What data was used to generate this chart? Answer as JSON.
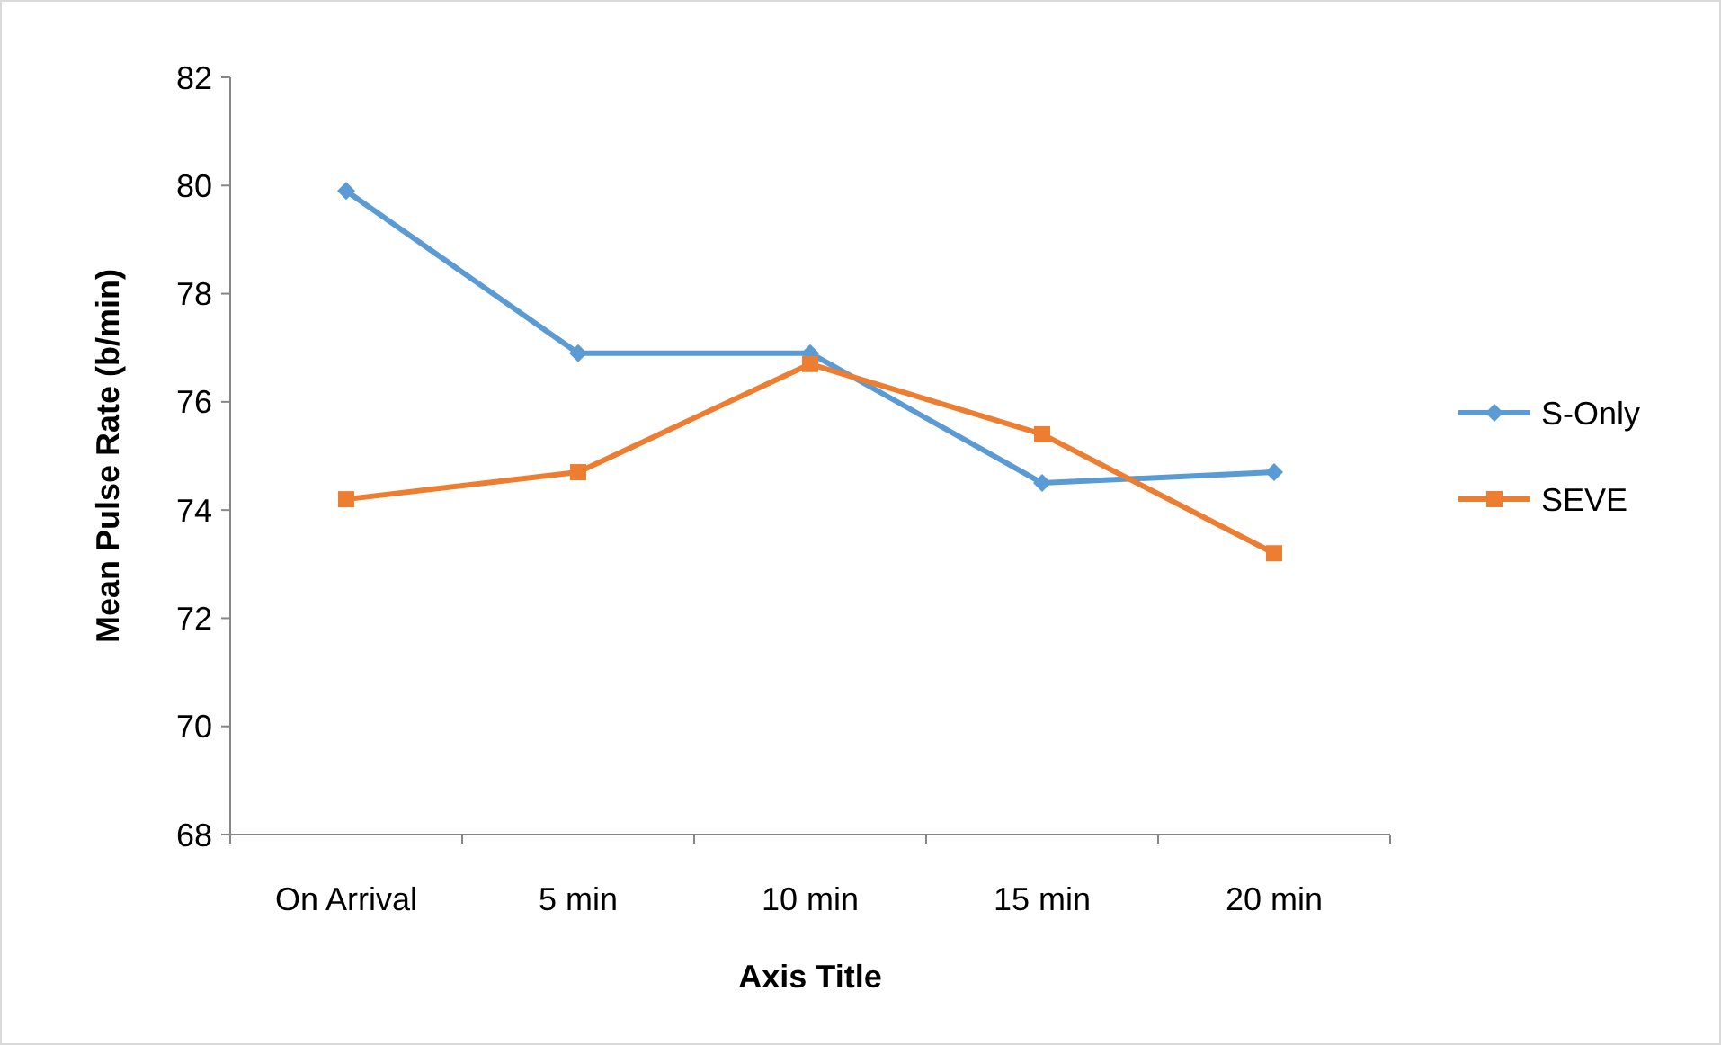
{
  "chart_data": {
    "type": "line",
    "xlabel": "Axis Title",
    "ylabel": "Mean Pulse Rate (b/min)",
    "categories": [
      "On Arrival",
      "5 min",
      "10 min",
      "15 min",
      "20 min"
    ],
    "ylim": [
      68,
      82
    ],
    "yticks": [
      68,
      70,
      72,
      74,
      76,
      78,
      80,
      82
    ],
    "grid": false,
    "legend": "right",
    "line_style": "solid",
    "series": [
      {
        "name": "S-Only",
        "color": "#5b9bd5",
        "marker": "diamond",
        "values": [
          79.9,
          76.9,
          76.9,
          74.5,
          74.7
        ]
      },
      {
        "name": "SEVE",
        "color": "#ed7d31",
        "marker": "square",
        "values": [
          74.2,
          74.7,
          76.7,
          75.4,
          73.2
        ]
      }
    ]
  }
}
